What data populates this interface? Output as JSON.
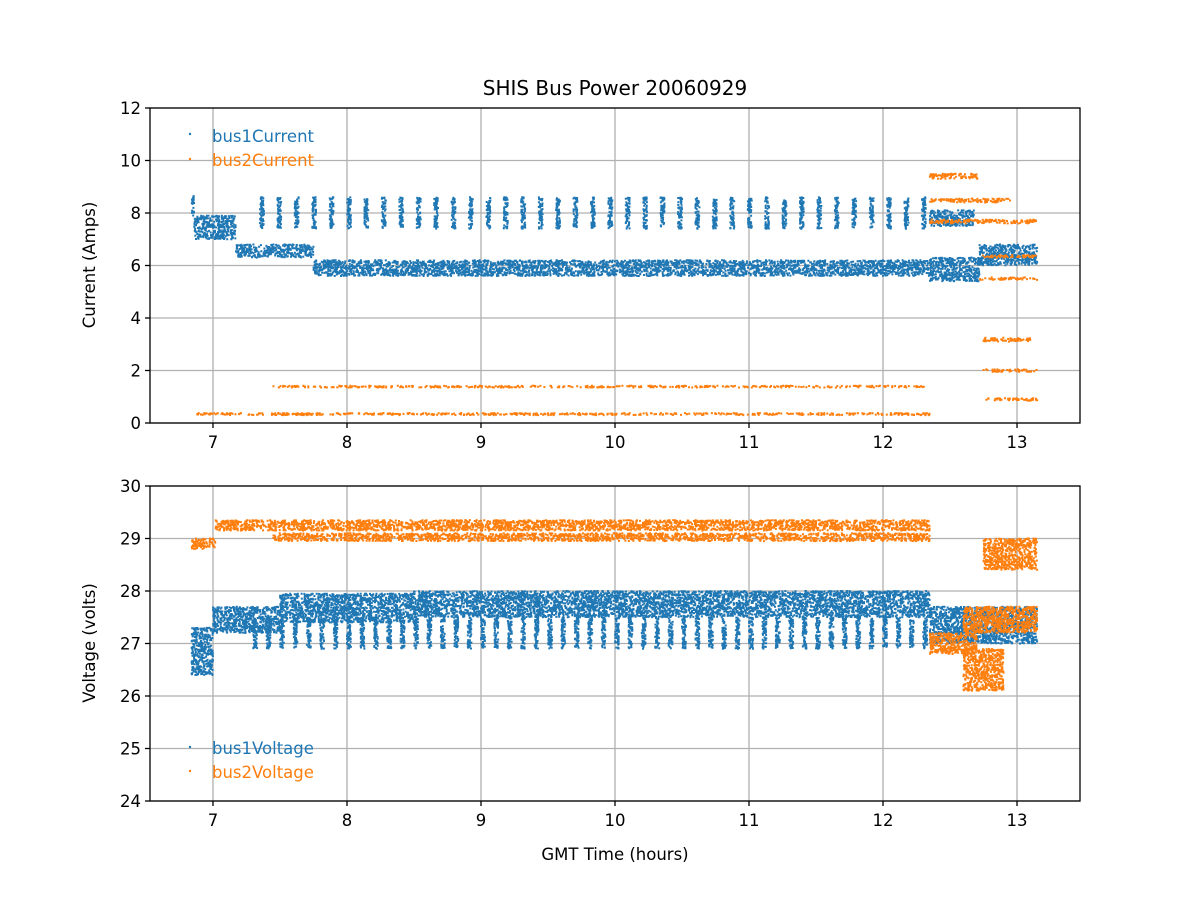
{
  "chart_data": [
    {
      "type": "scatter",
      "title": "SHIS Bus Power 20060929",
      "xlabel": "",
      "ylabel": "Current (Amps)",
      "xlim": [
        6.53,
        13.47
      ],
      "ylim": [
        0,
        12
      ],
      "xticks": [
        "7",
        "8",
        "9",
        "10",
        "11",
        "12",
        "13"
      ],
      "yticks": [
        "0",
        "2",
        "4",
        "6",
        "8",
        "10",
        "12"
      ],
      "grid": true,
      "legend": "top-left",
      "series": [
        {
          "name": "bus1Current",
          "color": "#1f77b4",
          "bands": [
            {
              "x": [
                6.84,
                6.86
              ],
              "y": [
                7.9,
                8.8
              ]
            },
            {
              "x": [
                6.86,
                7.17
              ],
              "y": [
                7.0,
                7.9
              ]
            },
            {
              "x": [
                7.17,
                7.75
              ],
              "y": [
                6.3,
                6.8
              ]
            },
            {
              "x": [
                7.75,
                12.35
              ],
              "y": [
                5.6,
                6.2
              ]
            },
            {
              "x": [
                12.35,
                12.72
              ],
              "y": [
                5.4,
                6.3
              ]
            },
            {
              "x": [
                12.72,
                13.15
              ],
              "y": [
                6.0,
                6.8
              ]
            },
            {
              "x": [
                12.35,
                12.68
              ],
              "y": [
                7.5,
                8.1
              ]
            }
          ],
          "bursts": {
            "x": [
              7.35,
              12.35
            ],
            "period": 0.13,
            "y": [
              7.4,
              8.6
            ]
          }
        },
        {
          "name": "bus2Current",
          "color": "#ff7f0e",
          "bands": [
            {
              "x": [
                6.84,
                12.35
              ],
              "y": [
                0.3,
                0.38
              ]
            },
            {
              "x": [
                7.45,
                12.35
              ],
              "y": [
                1.35,
                1.42
              ]
            },
            {
              "x": [
                12.35,
                12.72
              ],
              "y": [
                9.3,
                9.5
              ]
            },
            {
              "x": [
                12.35,
                12.95
              ],
              "y": [
                8.4,
                8.55
              ]
            },
            {
              "x": [
                12.35,
                13.15
              ],
              "y": [
                7.6,
                7.75
              ]
            },
            {
              "x": [
                12.72,
                13.15
              ],
              "y": [
                6.3,
                6.4
              ]
            },
            {
              "x": [
                12.72,
                13.15
              ],
              "y": [
                5.45,
                5.55
              ]
            },
            {
              "x": [
                12.75,
                13.1
              ],
              "y": [
                3.1,
                3.25
              ]
            },
            {
              "x": [
                12.75,
                13.15
              ],
              "y": [
                1.95,
                2.05
              ]
            },
            {
              "x": [
                12.75,
                13.15
              ],
              "y": [
                0.85,
                0.95
              ]
            }
          ]
        }
      ]
    },
    {
      "type": "scatter",
      "title": "",
      "xlabel": "GMT Time (hours)",
      "ylabel": "Voltage (volts)",
      "xlim": [
        6.53,
        13.47
      ],
      "ylim": [
        24,
        30
      ],
      "xticks": [
        "7",
        "8",
        "9",
        "10",
        "11",
        "12",
        "13"
      ],
      "yticks": [
        "24",
        "25",
        "26",
        "27",
        "28",
        "29",
        "30"
      ],
      "grid": true,
      "legend": "bottom-left",
      "series": [
        {
          "name": "bus1Voltage",
          "color": "#1f77b4",
          "bands": [
            {
              "x": [
                6.84,
                7.0
              ],
              "y": [
                26.4,
                27.3
              ]
            },
            {
              "x": [
                7.0,
                7.5
              ],
              "y": [
                27.2,
                27.7
              ]
            },
            {
              "x": [
                7.5,
                8.5
              ],
              "y": [
                27.4,
                27.95
              ]
            },
            {
              "x": [
                8.5,
                12.35
              ],
              "y": [
                27.5,
                28.0
              ]
            },
            {
              "x": [
                12.35,
                12.75
              ],
              "y": [
                27.0,
                27.7
              ]
            },
            {
              "x": [
                12.75,
                13.15
              ],
              "y": [
                27.0,
                27.7
              ]
            }
          ],
          "bursts": {
            "x": [
              7.3,
              12.35
            ],
            "period": 0.1,
            "y": [
              26.9,
              27.5
            ]
          }
        },
        {
          "name": "bus2Voltage",
          "color": "#ff7f0e",
          "bands": [
            {
              "x": [
                6.84,
                7.02
              ],
              "y": [
                28.8,
                29.0
              ]
            },
            {
              "x": [
                7.02,
                12.35
              ],
              "y": [
                29.15,
                29.35
              ]
            },
            {
              "x": [
                7.45,
                12.35
              ],
              "y": [
                28.95,
                29.1
              ]
            },
            {
              "x": [
                12.35,
                12.7
              ],
              "y": [
                26.8,
                27.2
              ]
            },
            {
              "x": [
                12.6,
                13.15
              ],
              "y": [
                27.2,
                27.7
              ]
            },
            {
              "x": [
                12.75,
                13.15
              ],
              "y": [
                28.4,
                29.0
              ]
            },
            {
              "x": [
                12.6,
                12.9
              ],
              "y": [
                26.1,
                26.9
              ]
            }
          ]
        }
      ]
    }
  ]
}
